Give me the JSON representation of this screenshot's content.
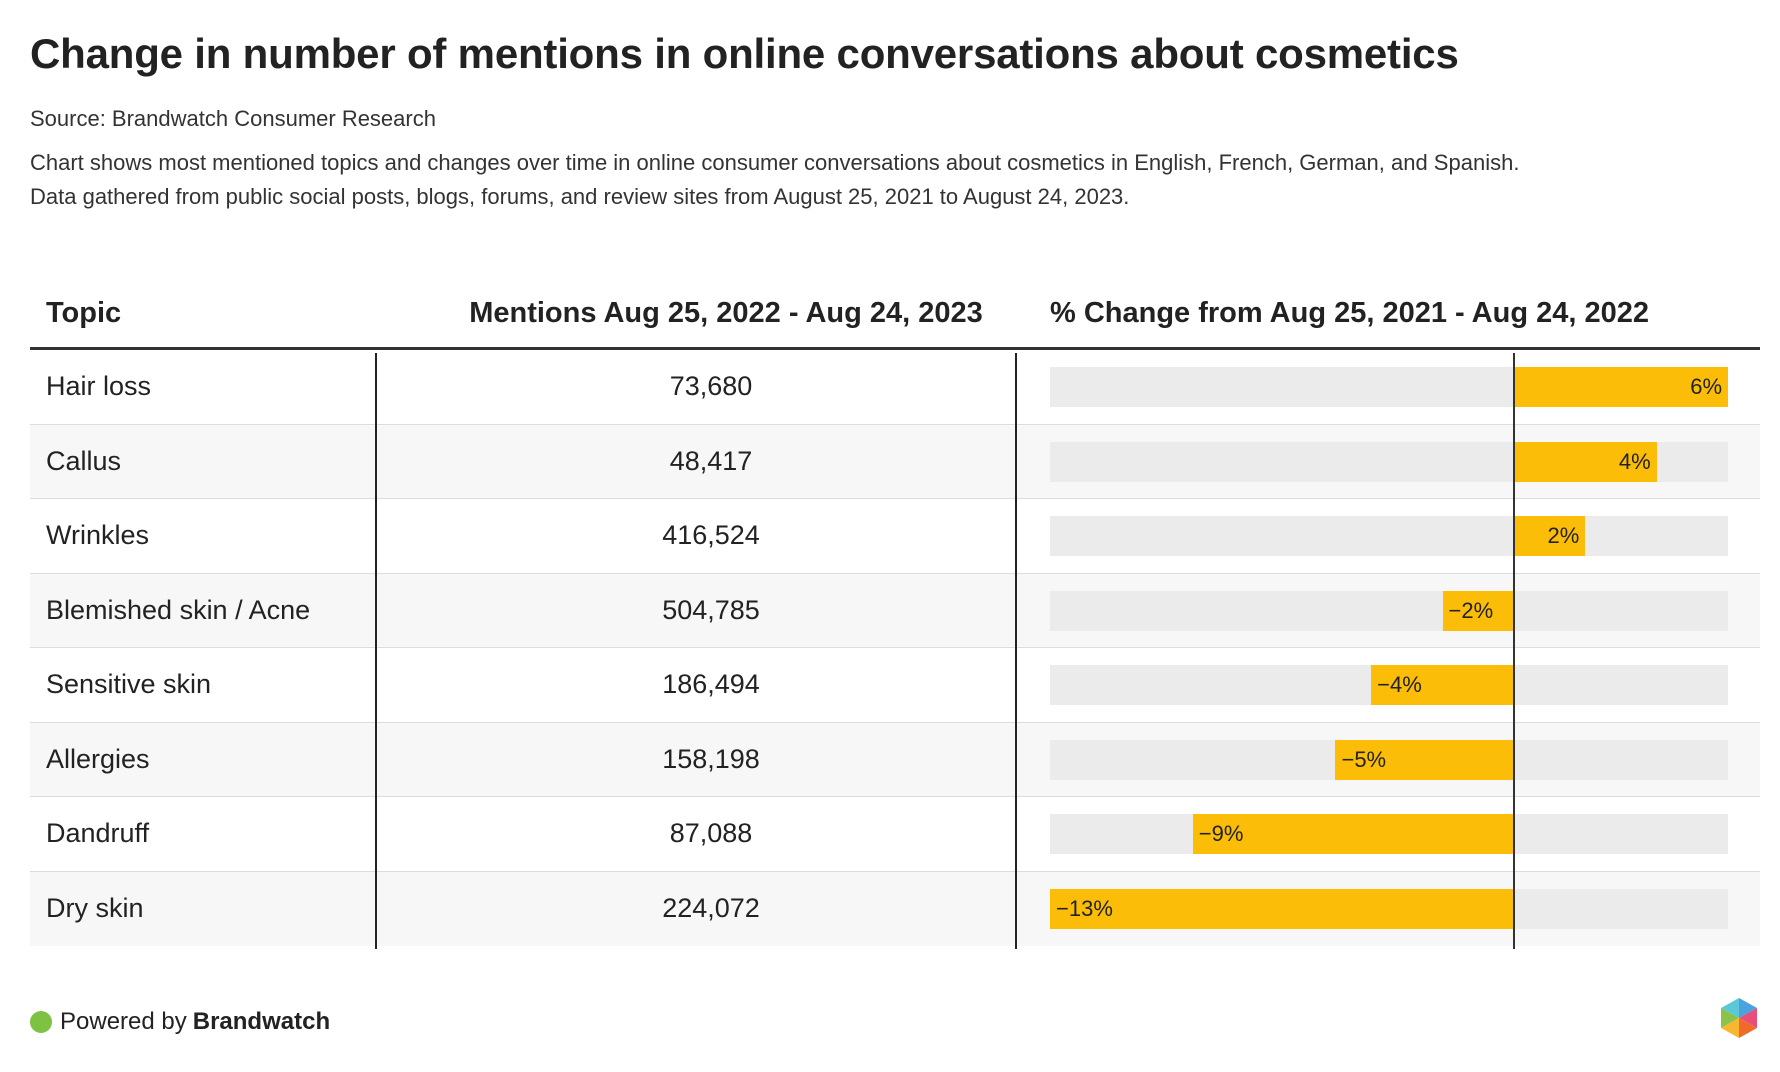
{
  "header": {
    "title": "Change in number of mentions in online conversations about cosmetics",
    "source": "Source: Brandwatch Consumer Research",
    "description_line1": "Chart shows most mentioned topics and changes over time in online consumer conversations about cosmetics in English, French, German, and Spanish.",
    "description_line2": "Data gathered from public social posts, blogs, forums, and review sites from August 25, 2021 to August 24, 2023."
  },
  "table": {
    "col_topic": "Topic",
    "col_mentions": "Mentions Aug 25, 2022 - Aug 24, 2023",
    "col_change": "% Change from Aug 25, 2021 - Aug 24, 2022"
  },
  "chart_data": {
    "type": "table",
    "columns": [
      "Topic",
      "Mentions Aug 25, 2022 - Aug 24, 2023",
      "% Change from Aug 25, 2021 - Aug 24, 2022"
    ],
    "change_range": [
      -13,
      6
    ],
    "rows": [
      {
        "topic": "Hair loss",
        "mentions": "73,680",
        "change": 6,
        "change_label": "6%"
      },
      {
        "topic": "Callus",
        "mentions": "48,417",
        "change": 4,
        "change_label": "4%"
      },
      {
        "topic": "Wrinkles",
        "mentions": "416,524",
        "change": 2,
        "change_label": "2%"
      },
      {
        "topic": "Blemished skin / Acne",
        "mentions": "504,785",
        "change": -2,
        "change_label": "−2%"
      },
      {
        "topic": "Sensitive skin",
        "mentions": "186,494",
        "change": -4,
        "change_label": "−4%"
      },
      {
        "topic": "Allergies",
        "mentions": "158,198",
        "change": -5,
        "change_label": "−5%"
      },
      {
        "topic": "Dandruff",
        "mentions": "87,088",
        "change": -9,
        "change_label": "−9%"
      },
      {
        "topic": "Dry skin",
        "mentions": "224,072",
        "change": -13,
        "change_label": "−13%"
      }
    ],
    "bar_color": "#fbbd08",
    "track_color": "#ebebeb"
  },
  "footer": {
    "powered_by": "Powered by",
    "brand": "Brandwatch",
    "dot_color": "#7dc242"
  }
}
